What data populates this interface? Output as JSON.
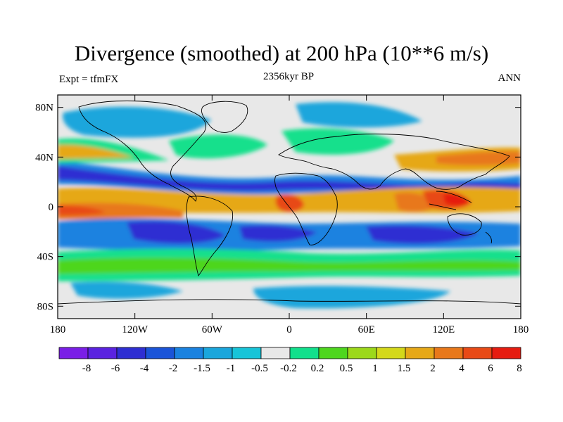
{
  "title": "Divergence (smoothed) at 200 hPa (10**6 m/s)",
  "left_label": "Expt = tfmFX",
  "center_label": "2356kyr BP",
  "right_label": "ANN",
  "axes": {
    "y_ticks": [
      "80N",
      "40N",
      "0",
      "40S",
      "80S"
    ],
    "x_ticks": [
      "180",
      "120W",
      "60W",
      "0",
      "60E",
      "120E",
      "180"
    ]
  },
  "colorbar": {
    "colors": [
      "#7a1ee6",
      "#5a22e0",
      "#2e2ed2",
      "#1a54d8",
      "#1a82e0",
      "#1aa6dc",
      "#18c4d8",
      "#e8e8e8",
      "#12e08c",
      "#4ed61e",
      "#9cd81a",
      "#d4d81a",
      "#e6a818",
      "#e8781a",
      "#e84a16",
      "#e61c10"
    ],
    "labels": [
      "-8",
      "-6",
      "-4",
      "-2",
      "-1.5",
      "-1",
      "-0.5",
      "-0.2",
      "0.2",
      "0.5",
      "1",
      "1.5",
      "2",
      "4",
      "6",
      "8"
    ]
  }
}
